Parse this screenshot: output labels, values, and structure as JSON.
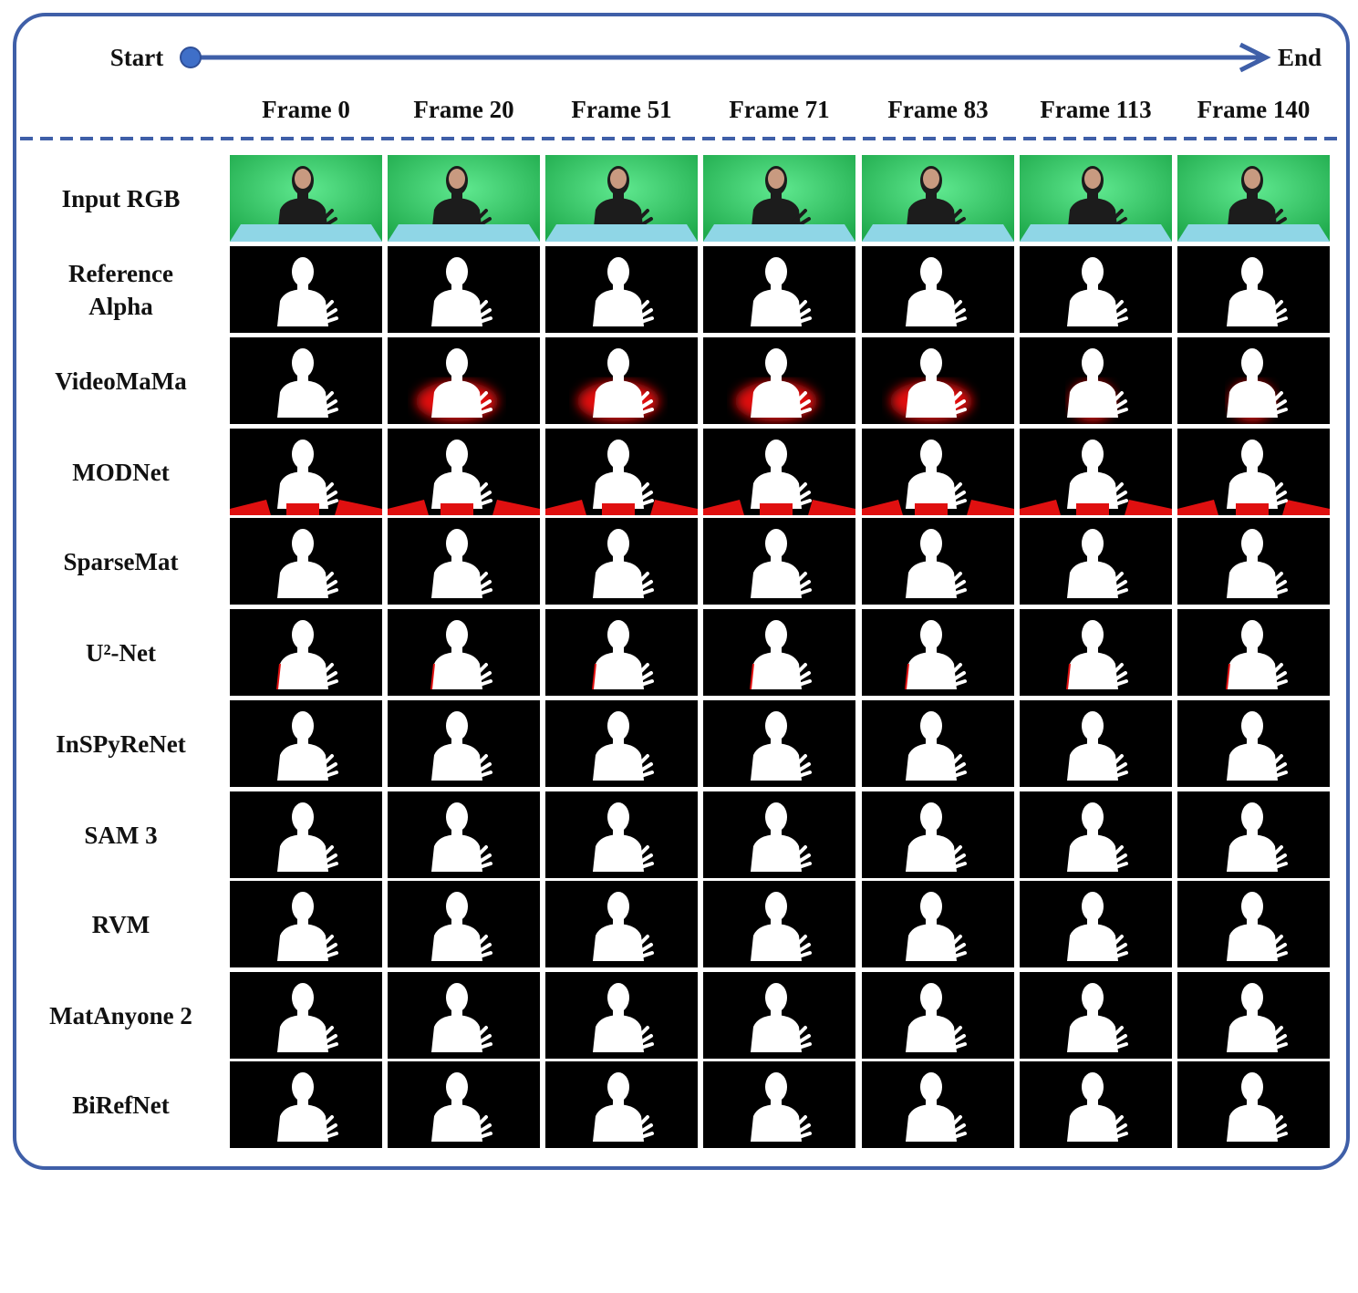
{
  "header": {
    "start": "Start",
    "end": "End"
  },
  "frames": [
    "Frame 0",
    "Frame 20",
    "Frame 51",
    "Frame 71",
    "Frame 83",
    "Frame 113",
    "Frame 140"
  ],
  "rows": [
    "Input RGB",
    "Reference Alpha",
    "VideoMaMa",
    "MODNet",
    "SparseMat",
    "U²-Net",
    "InSPyReNet",
    "SAM 3",
    "RVM",
    "MatAnyone 2",
    "BiRefNet"
  ]
}
